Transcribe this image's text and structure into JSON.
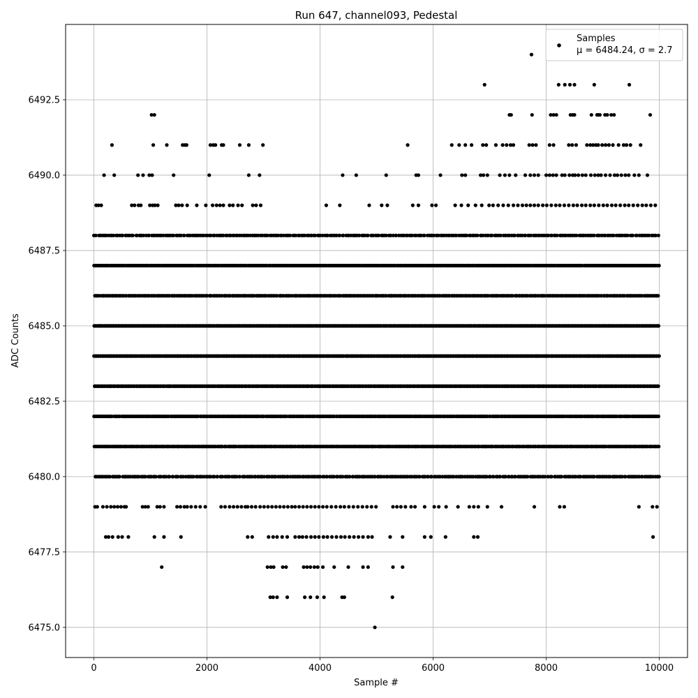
{
  "chart_data": {
    "type": "scatter",
    "title": "Run 647, channel093, Pedestal",
    "xlabel": "Sample #",
    "ylabel": "ADC Counts",
    "xlim": [
      -500,
      10500
    ],
    "ylim": [
      6474.0,
      6495.0
    ],
    "xticks": [
      0,
      2000,
      4000,
      6000,
      8000,
      10000
    ],
    "xtick_labels": [
      "0",
      "2000",
      "4000",
      "6000",
      "8000",
      "10000"
    ],
    "yticks": [
      6475.0,
      6477.5,
      6480.0,
      6482.5,
      6485.0,
      6487.5,
      6490.0,
      6492.5
    ],
    "ytick_labels": [
      "6475.0",
      "6477.5",
      "6480.0",
      "6482.5",
      "6485.0",
      "6487.5",
      "6490.0",
      "6492.5"
    ],
    "grid": true,
    "legend_position": "top-right",
    "series": [
      {
        "name": "Samples",
        "stats_label": "μ = 6484.24, σ = 2.7",
        "color": "#000000",
        "x_range": [
          0,
          9999
        ],
        "levels": {
          "6475": [
            4970
          ],
          "6494": [
            7740
          ],
          "6493": [
            6910,
            8220,
            8330,
            8420,
            8500,
            8850,
            9470
          ],
          "6492": [
            1020,
            1070,
            7350,
            7380,
            7750,
            8080,
            8130,
            8180,
            8430,
            8470,
            8500,
            8800,
            8900,
            8920,
            8950,
            9040,
            9080,
            9150,
            9200,
            9840
          ],
          "6491": [
            320,
            1050,
            1290,
            1570,
            1610,
            1640,
            2060,
            2110,
            2150,
            2260,
            2290,
            2580,
            2740,
            2990,
            5550,
            6330,
            6460,
            6570,
            6680,
            6880,
            6940,
            7110,
            7230,
            7300,
            7370,
            7420,
            7700,
            7760,
            7820,
            8060,
            8130,
            8400,
            8460,
            8530,
            8720,
            8780,
            8830,
            8880,
            8920,
            8990,
            9050,
            9110,
            9180,
            9280,
            9370,
            9420,
            9490,
            9670
          ],
          "6490": [
            180,
            360,
            780,
            870,
            980,
            1030,
            1410,
            2040,
            2740,
            2930,
            4400,
            4640,
            5170,
            5700,
            5740,
            6130,
            6510,
            6570,
            6840,
            6890,
            6960,
            7180,
            7270,
            7350,
            7460,
            7630,
            7720,
            7790,
            7860,
            8000,
            8060,
            8120,
            8180,
            8280,
            8330,
            8410,
            8470,
            8510,
            8570,
            8640,
            8700,
            8790,
            8860,
            8920,
            8970,
            9050,
            9130,
            9210,
            9260,
            9330,
            9400,
            9460,
            9560,
            9640,
            9790
          ],
          "6489": [
            40,
            80,
            130,
            670,
            720,
            790,
            830,
            990,
            1040,
            1080,
            1130,
            1450,
            1500,
            1560,
            1650,
            1820,
            1980,
            2100,
            2170,
            2230,
            2290,
            2400,
            2460,
            2550,
            2620,
            2810,
            2870,
            2950,
            4110,
            4350,
            4870,
            5090,
            5190,
            5640,
            5740,
            5980,
            6050,
            6390,
            6500,
            6620,
            6750,
            6860,
            6990,
            7060,
            7150,
            7240,
            7330,
            7420,
            7500,
            7580,
            7650,
            7720,
            7790,
            7860,
            7940,
            8010,
            8090,
            8170,
            8240,
            8320,
            8400,
            8480,
            8550,
            8630,
            8700,
            8780,
            8850,
            8930,
            9010,
            9080,
            9160,
            9230,
            9310,
            9390,
            9460,
            9540,
            9620,
            9700,
            9770,
            9850,
            9930
          ],
          "6479": [
            20,
            60,
            160,
            230,
            300,
            360,
            420,
            480,
            540,
            570,
            860,
            910,
            960,
            1120,
            1170,
            1240,
            1470,
            1530,
            1600,
            1650,
            1720,
            1800,
            1880,
            1970,
            2250,
            2320,
            2400,
            2470,
            2540,
            2610,
            2680,
            2720,
            2790,
            2860,
            2940,
            3010,
            3080,
            3150,
            3220,
            3290,
            3360,
            3430,
            3500,
            3560,
            3630,
            3700,
            3770,
            3840,
            3910,
            3980,
            4050,
            4120,
            4200,
            4280,
            4360,
            4430,
            4510,
            4590,
            4670,
            4750,
            4830,
            4910,
            4990,
            5290,
            5360,
            5430,
            5510,
            5610,
            5680,
            5850,
            6020,
            6100,
            6230,
            6440,
            6640,
            6720,
            6800,
            6960,
            7210,
            7790,
            8240,
            8320,
            9640,
            9880,
            9960
          ],
          "6478": [
            210,
            260,
            330,
            430,
            500,
            610,
            1070,
            1240,
            1540,
            2720,
            2800,
            3090,
            3170,
            3240,
            3330,
            3420,
            3560,
            3630,
            3690,
            3760,
            3840,
            3910,
            3980,
            4060,
            4130,
            4210,
            4290,
            4370,
            4440,
            4520,
            4600,
            4680,
            4760,
            4850,
            4920,
            5240,
            5460,
            5850,
            5960,
            6220,
            6720,
            6790,
            9890
          ],
          "6477": [
            1200,
            3070,
            3130,
            3180,
            3340,
            3400,
            3710,
            3770,
            3830,
            3900,
            3960,
            4050,
            4250,
            4500,
            4760,
            4850,
            5290,
            5460
          ],
          "6476": [
            3120,
            3170,
            3240,
            3420,
            3730,
            3830,
            3950,
            4070,
            4390,
            4430,
            5280
          ]
        },
        "dense_levels": [
          {
            "y": 6488,
            "count": 320
          },
          {
            "y": 6487,
            "count": 520
          },
          {
            "y": 6486,
            "count": 420
          },
          {
            "y": 6485,
            "count": 600
          },
          {
            "y": 6484,
            "count": 600
          },
          {
            "y": 6483,
            "count": 560
          },
          {
            "y": 6482,
            "count": 440
          },
          {
            "y": 6481,
            "count": 480
          },
          {
            "y": 6480,
            "count": 330
          }
        ]
      }
    ]
  }
}
